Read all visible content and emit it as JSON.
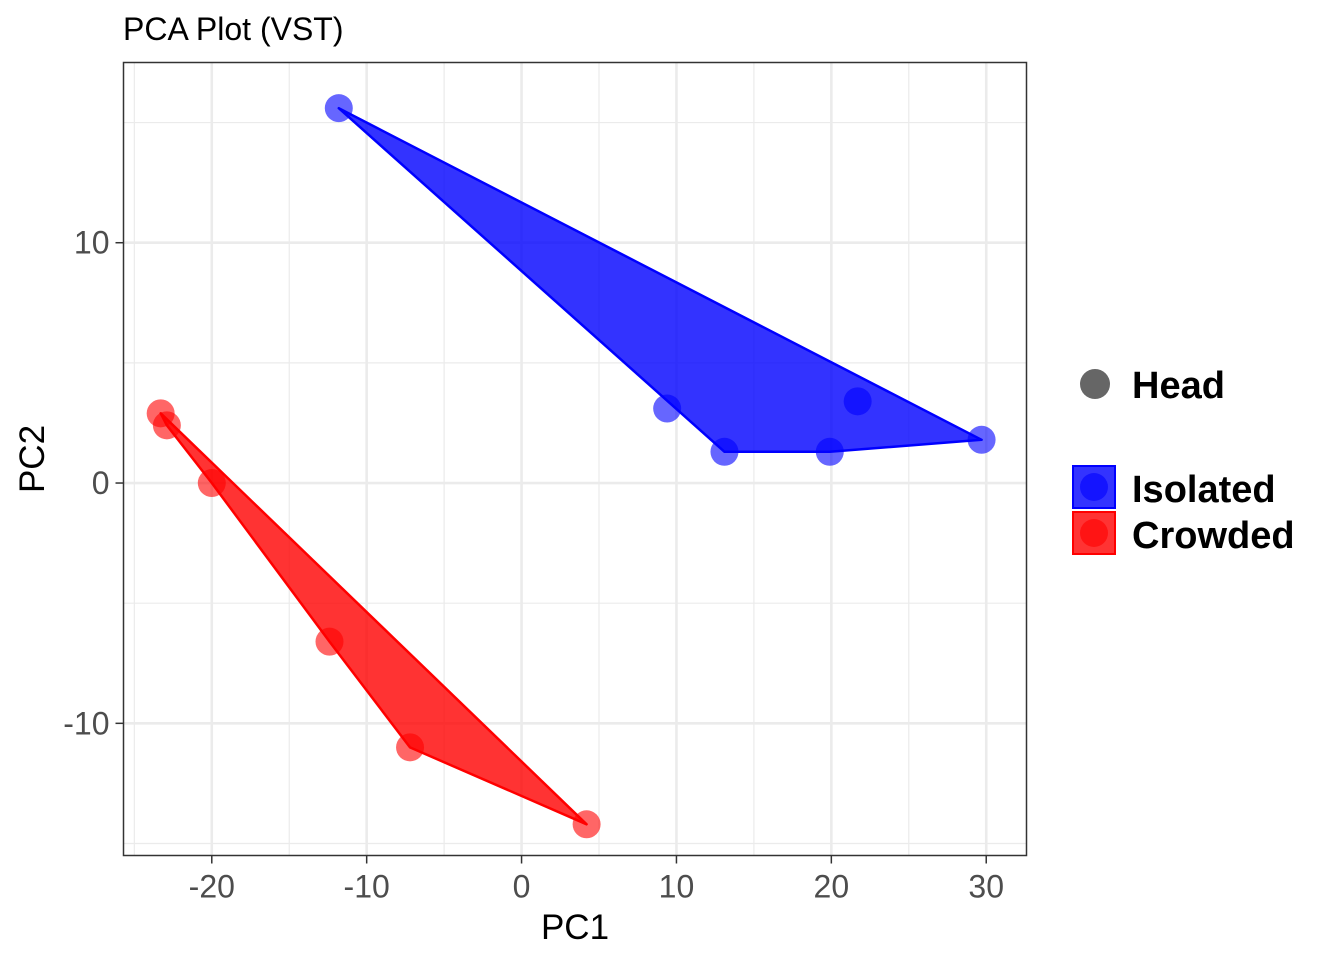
{
  "chart_data": {
    "type": "scatter",
    "title": "PCA Plot (VST)",
    "xlabel": "PC1",
    "ylabel": "PC2",
    "xlim": [
      -25.7,
      32.6
    ],
    "ylim": [
      -15.5,
      17.5
    ],
    "x_ticks": [
      -20,
      -10,
      0,
      10,
      20,
      30
    ],
    "y_ticks": [
      -10,
      0,
      10
    ],
    "x_tick_labels": [
      "-20",
      "-10",
      "0",
      "10",
      "20",
      "30"
    ],
    "y_tick_labels": [
      "-10",
      "0",
      "10"
    ],
    "grid": true,
    "legend_position": "right",
    "shape_legend": {
      "label": "Head",
      "color": "#666666"
    },
    "series": [
      {
        "name": "Isolated",
        "color": "#0000ff",
        "points": [
          {
            "x": -11.8,
            "y": 15.6
          },
          {
            "x": 9.4,
            "y": 3.1
          },
          {
            "x": 13.1,
            "y": 1.3
          },
          {
            "x": 19.9,
            "y": 1.3
          },
          {
            "x": 21.7,
            "y": 3.4
          },
          {
            "x": 29.7,
            "y": 1.8
          }
        ],
        "hull": [
          {
            "x": -11.8,
            "y": 15.6
          },
          {
            "x": 29.7,
            "y": 1.8
          },
          {
            "x": 19.9,
            "y": 1.3
          },
          {
            "x": 13.1,
            "y": 1.3
          }
        ]
      },
      {
        "name": "Crowded",
        "color": "#ff0000",
        "points": [
          {
            "x": -23.3,
            "y": 2.9
          },
          {
            "x": -22.9,
            "y": 2.4
          },
          {
            "x": -20.0,
            "y": 0.0
          },
          {
            "x": -12.4,
            "y": -6.6
          },
          {
            "x": -7.2,
            "y": -11.0
          },
          {
            "x": 4.2,
            "y": -14.2
          }
        ],
        "hull": [
          {
            "x": -23.3,
            "y": 2.9
          },
          {
            "x": 4.2,
            "y": -14.2
          },
          {
            "x": -7.2,
            "y": -11.0
          },
          {
            "x": -12.4,
            "y": -6.6
          },
          {
            "x": -20.0,
            "y": 0.0
          },
          {
            "x": -22.9,
            "y": 2.4
          }
        ]
      }
    ]
  }
}
